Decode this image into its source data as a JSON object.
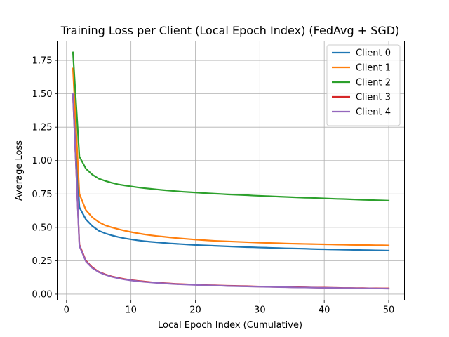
{
  "chart_data": {
    "type": "line",
    "title": "Training Loss per Client (Local Epoch Index) (FedAvg + SGD)",
    "xlabel": "Local Epoch Index (Cumulative)",
    "ylabel": "Average Loss",
    "xlim": [
      -1.45,
      52.45
    ],
    "ylim": [
      -0.045,
      1.895
    ],
    "xticks": [
      0,
      10,
      20,
      30,
      40,
      50
    ],
    "yticks": [
      0.0,
      0.25,
      0.5,
      0.75,
      1.0,
      1.25,
      1.5,
      1.75
    ],
    "ytick_labels": [
      "0.00",
      "0.25",
      "0.50",
      "0.75",
      "1.00",
      "1.25",
      "1.50",
      "1.75"
    ],
    "grid": true,
    "legend_position": "top-right",
    "x": [
      1,
      2,
      3,
      4,
      5,
      6,
      7,
      8,
      9,
      10,
      11,
      12,
      13,
      14,
      15,
      16,
      17,
      18,
      19,
      20,
      21,
      22,
      23,
      24,
      25,
      26,
      27,
      28,
      29,
      30,
      31,
      32,
      33,
      34,
      35,
      36,
      37,
      38,
      39,
      40,
      41,
      42,
      43,
      44,
      45,
      46,
      47,
      48,
      49,
      50
    ],
    "series": [
      {
        "name": "Client 0",
        "color": "#1f77b4",
        "values": [
          1.5,
          0.65,
          0.56,
          0.51,
          0.475,
          0.455,
          0.44,
          0.428,
          0.418,
          0.41,
          0.403,
          0.397,
          0.392,
          0.388,
          0.384,
          0.38,
          0.377,
          0.374,
          0.371,
          0.368,
          0.366,
          0.364,
          0.362,
          0.36,
          0.358,
          0.356,
          0.354,
          0.352,
          0.351,
          0.349,
          0.348,
          0.346,
          0.345,
          0.343,
          0.342,
          0.341,
          0.34,
          0.338,
          0.337,
          0.336,
          0.335,
          0.334,
          0.333,
          0.332,
          0.331,
          0.33,
          0.329,
          0.328,
          0.327,
          0.326
        ]
      },
      {
        "name": "Client 1",
        "color": "#ff7f0e",
        "values": [
          1.69,
          0.75,
          0.63,
          0.575,
          0.54,
          0.515,
          0.5,
          0.487,
          0.475,
          0.465,
          0.456,
          0.448,
          0.441,
          0.435,
          0.43,
          0.425,
          0.42,
          0.416,
          0.412,
          0.408,
          0.405,
          0.402,
          0.399,
          0.397,
          0.395,
          0.393,
          0.391,
          0.389,
          0.387,
          0.385,
          0.384,
          0.382,
          0.381,
          0.379,
          0.378,
          0.377,
          0.376,
          0.375,
          0.374,
          0.373,
          0.372,
          0.371,
          0.37,
          0.369,
          0.368,
          0.367,
          0.367,
          0.366,
          0.366,
          0.365
        ]
      },
      {
        "name": "Client 2",
        "color": "#2ca02c",
        "values": [
          1.81,
          1.03,
          0.94,
          0.895,
          0.865,
          0.848,
          0.834,
          0.822,
          0.814,
          0.807,
          0.8,
          0.794,
          0.789,
          0.784,
          0.779,
          0.775,
          0.771,
          0.767,
          0.764,
          0.761,
          0.758,
          0.755,
          0.752,
          0.75,
          0.747,
          0.745,
          0.743,
          0.741,
          0.738,
          0.736,
          0.734,
          0.732,
          0.73,
          0.728,
          0.726,
          0.724,
          0.722,
          0.721,
          0.719,
          0.717,
          0.715,
          0.713,
          0.712,
          0.71,
          0.708,
          0.706,
          0.705,
          0.703,
          0.702,
          0.7
        ]
      },
      {
        "name": "Client 3",
        "color": "#d62728",
        "values": [
          1.49,
          0.37,
          0.25,
          0.2,
          0.168,
          0.148,
          0.133,
          0.122,
          0.113,
          0.106,
          0.1,
          0.095,
          0.09,
          0.086,
          0.083,
          0.08,
          0.077,
          0.075,
          0.073,
          0.071,
          0.069,
          0.067,
          0.066,
          0.064,
          0.063,
          0.062,
          0.061,
          0.06,
          0.058,
          0.057,
          0.056,
          0.055,
          0.054,
          0.053,
          0.052,
          0.052,
          0.051,
          0.05,
          0.049,
          0.049,
          0.048,
          0.047,
          0.046,
          0.046,
          0.045,
          0.045,
          0.044,
          0.044,
          0.043,
          0.043
        ]
      },
      {
        "name": "Client 4",
        "color": "#9467bd",
        "values": [
          1.5,
          0.36,
          0.245,
          0.195,
          0.165,
          0.145,
          0.13,
          0.119,
          0.11,
          0.103,
          0.097,
          0.092,
          0.088,
          0.084,
          0.081,
          0.078,
          0.075,
          0.073,
          0.071,
          0.069,
          0.067,
          0.066,
          0.064,
          0.063,
          0.061,
          0.06,
          0.059,
          0.058,
          0.057,
          0.056,
          0.055,
          0.054,
          0.053,
          0.052,
          0.051,
          0.05,
          0.05,
          0.049,
          0.048,
          0.047,
          0.047,
          0.046,
          0.045,
          0.045,
          0.044,
          0.043,
          0.043,
          0.042,
          0.042,
          0.041
        ]
      }
    ]
  }
}
